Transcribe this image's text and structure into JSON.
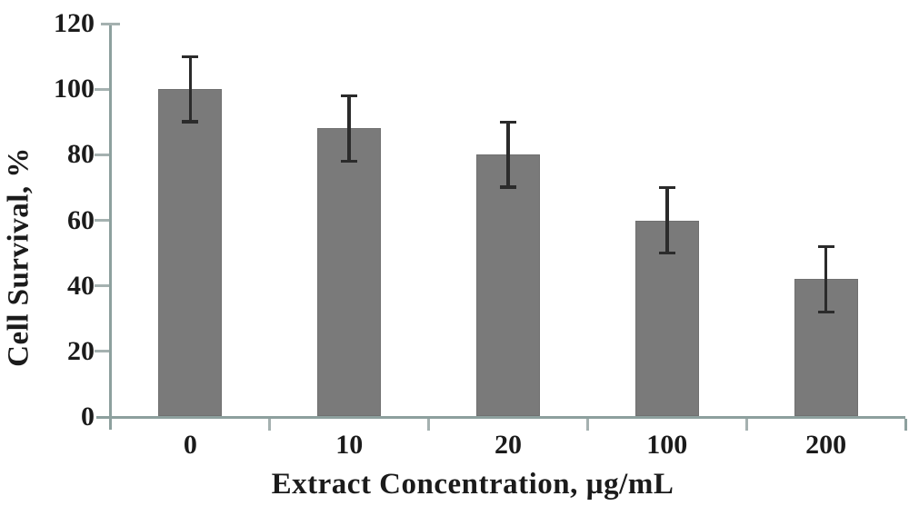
{
  "figure": {
    "background": "#ffffff"
  },
  "chart_data": {
    "type": "bar",
    "title": "",
    "xlabel": "Extract Concentration, µg/mL",
    "ylabel": "Cell Survival, %",
    "categories": [
      "0",
      "10",
      "20",
      "100",
      "200"
    ],
    "series": [
      {
        "name": "Cell Survival",
        "values": [
          100,
          88,
          80,
          60,
          42
        ],
        "errors": [
          10,
          10,
          10,
          10,
          10
        ]
      }
    ],
    "ylim": [
      0,
      120
    ],
    "y_ticks": [
      0,
      20,
      40,
      60,
      80,
      100,
      120
    ],
    "grid": false,
    "legend": "none",
    "colors": {
      "bar": "#7a7a7a",
      "bar_edge": "#707070",
      "error": "#2b2b2b",
      "axis": "#8da09e",
      "tick": "#a5b1b0",
      "text": "#1b1b1b"
    }
  }
}
